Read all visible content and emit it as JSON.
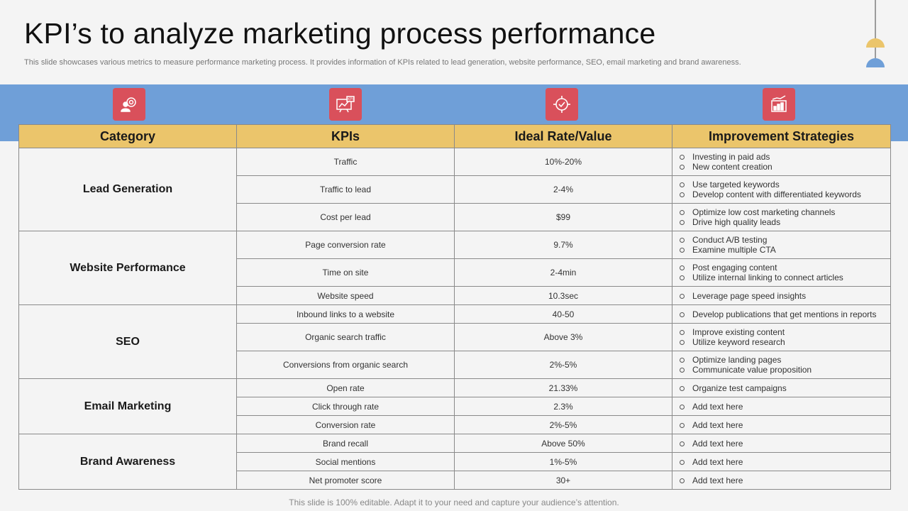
{
  "title": "KPI’s  to analyze marketing process performance",
  "subtitle": "This slide showcases various metrics to measure performance marketing process. It provides information of KPIs related to lead generation, website performance, SEO, email marketing and brand awareness.",
  "colors": {
    "header": "#ebc56b",
    "band": "#6f9fd8",
    "icon_bg": "#d9505b",
    "deco_gold": "#ebc56b",
    "deco_blue": "#6f9fd8"
  },
  "icons": [
    "team-target-icon",
    "kpi-presentation-icon",
    "target-check-icon",
    "growth-chart-icon"
  ],
  "headers": {
    "category": "Category",
    "kpis": "KPIs",
    "ideal": "Ideal Rate/Value",
    "strategies": "Improvement Strategies"
  },
  "groups": [
    {
      "category": "Lead Generation",
      "rows": [
        {
          "kpi": "Traffic",
          "value": "10%-20%",
          "strategies": [
            "Investing in paid ads",
            "New content creation"
          ]
        },
        {
          "kpi": "Traffic to lead",
          "value": "2-4%",
          "strategies": [
            "Use targeted keywords",
            "Develop content with differentiated keywords"
          ]
        },
        {
          "kpi": "Cost per lead",
          "value": "$99",
          "strategies": [
            "Optimize low cost marketing channels",
            "Drive high quality leads"
          ]
        }
      ]
    },
    {
      "category": "Website Performance",
      "rows": [
        {
          "kpi": "Page conversion rate",
          "value": "9.7%",
          "strategies": [
            "Conduct A/B  testing",
            "Examine multiple CTA"
          ]
        },
        {
          "kpi": "Time on site",
          "value": "2-4min",
          "strategies": [
            "Post engaging content",
            "Utilize internal linking to connect articles"
          ]
        },
        {
          "kpi": "Website speed",
          "value": "10.3sec",
          "strategies": [
            "Leverage page speed insights"
          ]
        }
      ]
    },
    {
      "category": "SEO",
      "rows": [
        {
          "kpi": "Inbound links to a website",
          "value": "40-50",
          "strategies": [
            "Develop publications that get mentions in reports"
          ]
        },
        {
          "kpi": "Organic search traffic",
          "value": "Above 3%",
          "strategies": [
            "Improve existing content",
            "Utilize keyword research"
          ]
        },
        {
          "kpi": "Conversions from organic search",
          "value": "2%-5%",
          "strategies": [
            "Optimize landing pages",
            "Communicate value proposition"
          ]
        }
      ]
    },
    {
      "category": "Email Marketing",
      "rows": [
        {
          "kpi": "Open rate",
          "value": "21.33%",
          "strategies": [
            "Organize test campaigns"
          ]
        },
        {
          "kpi": "Click through rate",
          "value": "2.3%",
          "strategies": [
            "Add text here"
          ]
        },
        {
          "kpi": "Conversion rate",
          "value": "2%-5%",
          "strategies": [
            "Add text here"
          ]
        }
      ]
    },
    {
      "category": "Brand Awareness",
      "rows": [
        {
          "kpi": "Brand recall",
          "value": "Above 50%",
          "strategies": [
            "Add text here"
          ]
        },
        {
          "kpi": "Social mentions",
          "value": "1%-5%",
          "strategies": [
            "Add text here"
          ]
        },
        {
          "kpi": "Net promoter score",
          "value": "30+",
          "strategies": [
            "Add text here"
          ]
        }
      ]
    }
  ],
  "footer": "This slide is 100% editable. Adapt it to your need and capture your audience’s attention."
}
